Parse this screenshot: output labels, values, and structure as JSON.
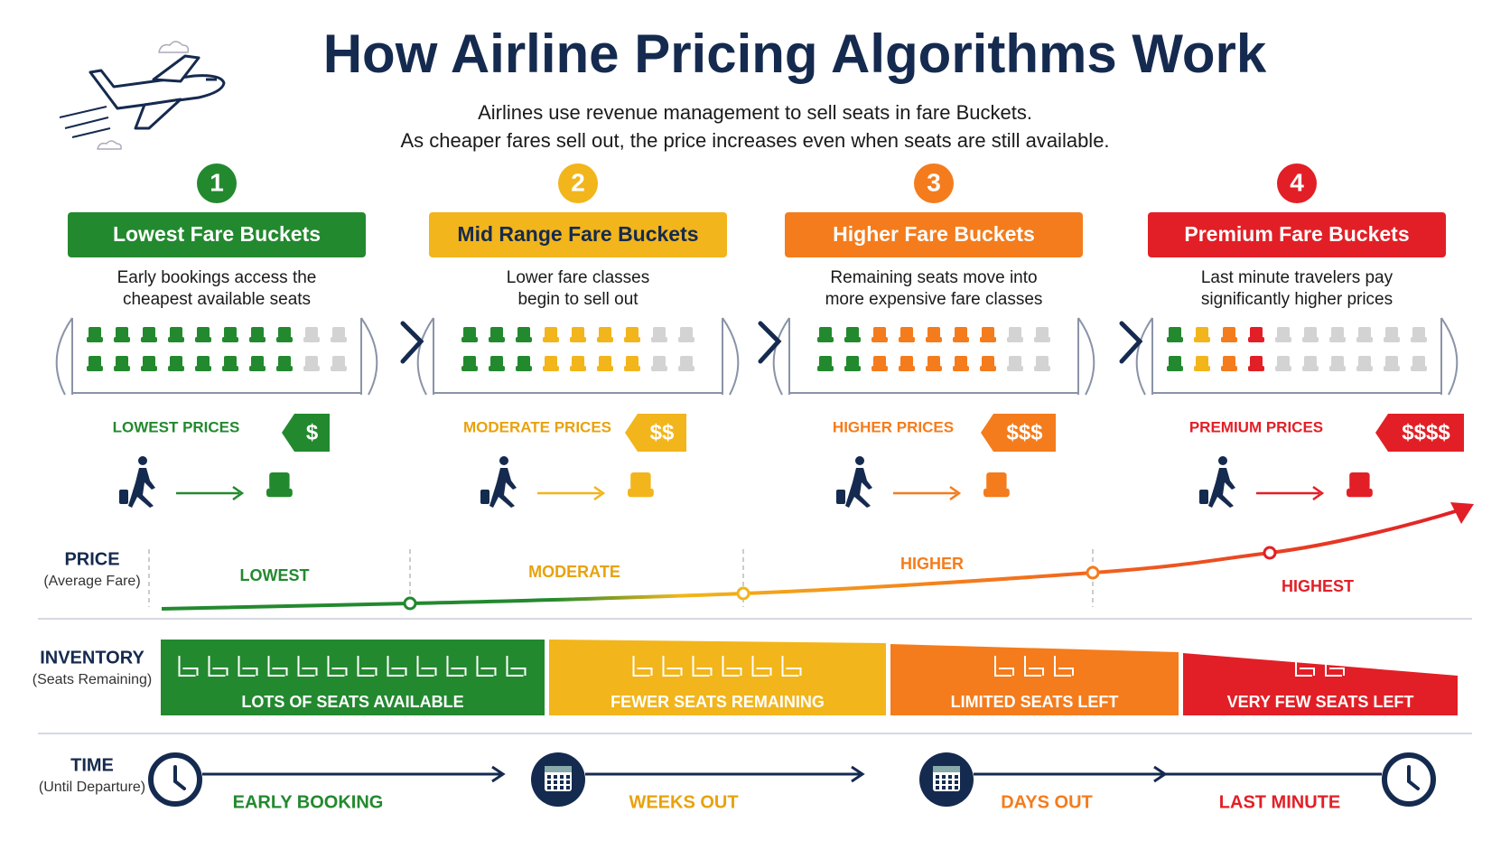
{
  "header": {
    "title": "How Airline Pricing Algorithms Work",
    "subtitle": [
      "Airlines use revenue management to sell seats in fare Buckets.",
      "As cheaper fares sell out, the price increases even when seats are still available."
    ]
  },
  "stages": [
    {
      "number": "1",
      "title": "Lowest Fare Buckets",
      "description": [
        "Early bookings access the",
        "cheapest available seats"
      ],
      "price_label": "LOWEST PRICES",
      "price_tag": "$",
      "color": "#23892f"
    },
    {
      "number": "2",
      "title": "Mid Range Fare Buckets",
      "description": [
        "Lower fare classes",
        "begin to sell out"
      ],
      "price_label": "MODERATE PRICES",
      "price_tag": "$$",
      "color": "#f2b51b"
    },
    {
      "number": "3",
      "title": "Higher Fare Buckets",
      "description": [
        "Remaining seats move into",
        "more expensive fare classes"
      ],
      "price_label": "HIGHER PRICES",
      "price_tag": "$$$",
      "color": "#f47c1c"
    },
    {
      "number": "4",
      "title": "Premium Fare Buckets",
      "description": [
        "Last minute travelers pay",
        "significantly higher prices"
      ],
      "price_label": "PREMIUM PRICES",
      "price_tag": "$$$$",
      "color": "#e21f26"
    }
  ],
  "price_row": {
    "label": "PRICE",
    "sublabel": "(Average Fare)",
    "levels": [
      "LOWEST",
      "MODERATE",
      "HIGHER",
      "HIGHEST"
    ]
  },
  "inventory_row": {
    "label": "INVENTORY",
    "sublabel": "(Seats Remaining)",
    "segments": [
      "LOTS OF SEATS AVAILABLE",
      "FEWER SEATS REMAINING",
      "LIMITED SEATS LEFT",
      "VERY FEW SEATS LEFT"
    ]
  },
  "time_row": {
    "label": "TIME",
    "sublabel": "(Until Departure)",
    "phases": [
      "EARLY BOOKING",
      "WEEKS OUT",
      "DAYS OUT",
      "LAST MINUTE"
    ]
  }
}
